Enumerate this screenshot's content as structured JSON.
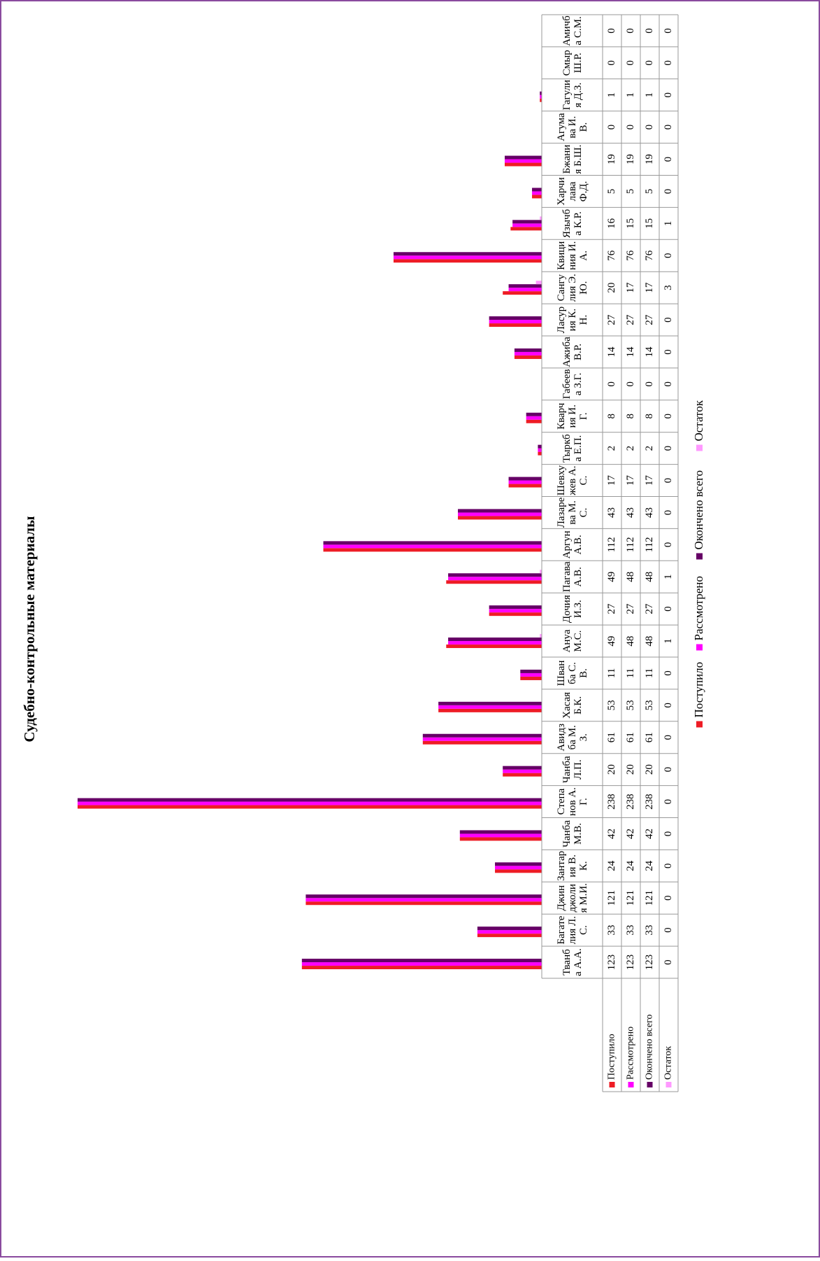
{
  "chart_data": {
    "type": "bar",
    "title": "Судебно-контрольные материалы",
    "categories": [
      "Тванба А.А.",
      "Багателия Л.С.",
      "Джинджолия М.И.",
      "Зантария В.К.",
      "Чанба М.В.",
      "Степанов А.Г.",
      "Чанба Л.П.",
      "Авидзба М.З.",
      "Хасая Б.К.",
      "Шванба С.В.",
      "Ануа М.С.",
      "Дочия И.З.",
      "Пагава А.В.",
      "Аргун А.В.",
      "Лазарева М.С.",
      "Шевхужев А.С.",
      "Тыркба Е.П.",
      "Кварчия И.Г.",
      "Габеева З.Г.",
      "Ажиба В.Р.",
      "Ласурия К.Н.",
      "Сангулия Э.Ю.",
      "Квициния И.А.",
      "Язычба К.Р.",
      "Харчилава Ф.Д.",
      "Бжания Б.Ш.",
      "Агумава И.В.",
      "Гагулия Д.З.",
      "Смыр Ш.Р.",
      "Амичба С.М."
    ],
    "series": [
      {
        "name": "Поступило",
        "color": "#ee1c25",
        "values": [
          123,
          33,
          121,
          24,
          42,
          238,
          20,
          61,
          53,
          11,
          49,
          27,
          49,
          112,
          43,
          17,
          2,
          8,
          0,
          14,
          27,
          20,
          76,
          16,
          5,
          19,
          0,
          1,
          0,
          0
        ]
      },
      {
        "name": "Рассмотрено",
        "color": "#ff00ff",
        "values": [
          123,
          33,
          121,
          24,
          42,
          238,
          20,
          61,
          53,
          11,
          48,
          27,
          48,
          112,
          43,
          17,
          2,
          8,
          0,
          14,
          27,
          17,
          76,
          15,
          5,
          19,
          0,
          1,
          0,
          0
        ]
      },
      {
        "name": "Окончено всего",
        "color": "#660066",
        "values": [
          123,
          33,
          121,
          24,
          42,
          238,
          20,
          61,
          53,
          11,
          48,
          27,
          48,
          112,
          43,
          17,
          2,
          8,
          0,
          14,
          27,
          17,
          76,
          15,
          5,
          19,
          0,
          1,
          0,
          0
        ]
      },
      {
        "name": "Остаток",
        "color": "#ff99ff",
        "values": [
          0,
          0,
          0,
          0,
          0,
          0,
          0,
          0,
          0,
          0,
          1,
          0,
          1,
          0,
          0,
          0,
          0,
          0,
          0,
          0,
          0,
          3,
          0,
          1,
          0,
          0,
          0,
          0,
          0,
          0
        ]
      }
    ],
    "ylim": [
      0,
      250
    ],
    "legend": "bottom"
  }
}
